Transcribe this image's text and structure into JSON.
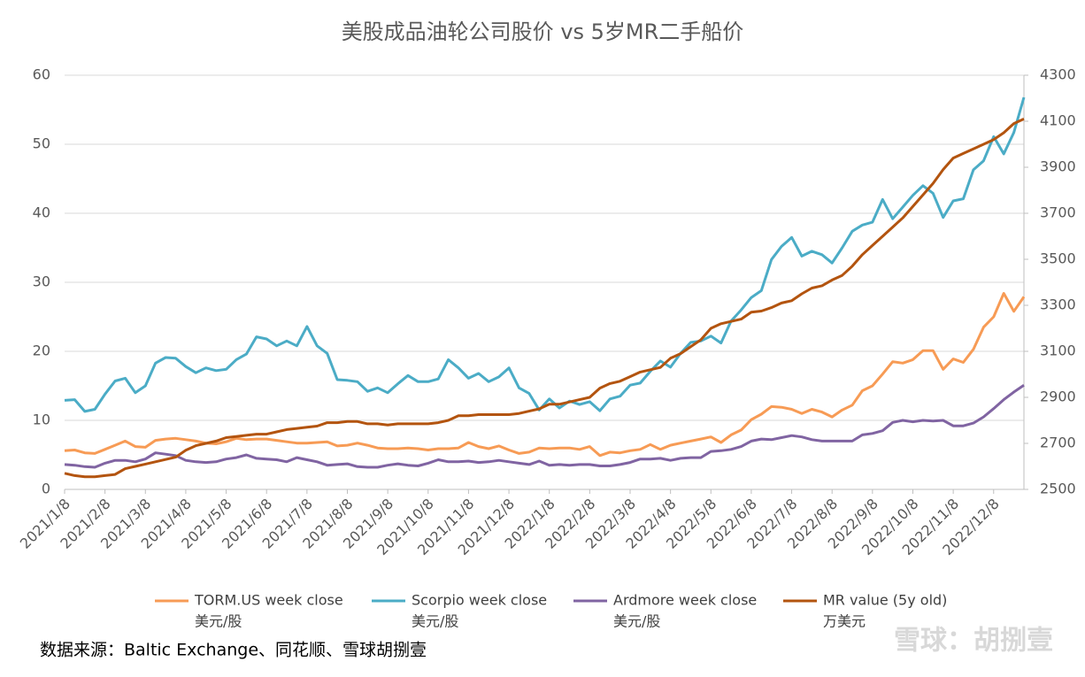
{
  "chart_data": {
    "type": "line",
    "title": "美股成品油轮公司股价 vs 5岁MR二手船价",
    "categories": [
      "2021/1/8",
      null,
      null,
      null,
      "2021/2/8",
      null,
      null,
      null,
      "2021/3/8",
      null,
      null,
      null,
      "2021/4/8",
      null,
      null,
      null,
      "2021/5/8",
      null,
      null,
      null,
      "2021/6/8",
      null,
      null,
      null,
      "2021/7/8",
      null,
      null,
      null,
      "2021/8/8",
      null,
      null,
      null,
      "2021/9/8",
      null,
      null,
      null,
      "2021/10/8",
      null,
      null,
      null,
      "2021/11/8",
      null,
      null,
      null,
      "2021/12/8",
      null,
      null,
      null,
      "2022/1/8",
      null,
      null,
      null,
      "2022/2/8",
      null,
      null,
      null,
      "2022/3/8",
      null,
      null,
      null,
      "2022/4/8",
      null,
      null,
      null,
      "2022/5/8",
      null,
      null,
      null,
      "2022/6/8",
      null,
      null,
      null,
      "2022/7/8",
      null,
      null,
      null,
      "2022/8/8",
      null,
      null,
      null,
      "2022/9/8",
      null,
      null,
      null,
      "2022/10/8",
      null,
      null,
      null,
      "2022/11/8",
      null,
      null,
      null,
      "2022/12/8",
      null,
      null,
      null
    ],
    "ylim": [
      0,
      60
    ],
    "yticks": [
      0,
      10,
      20,
      30,
      40,
      50,
      60
    ],
    "y2lim": [
      2500,
      4300
    ],
    "y2ticks": [
      2500,
      2700,
      2900,
      3100,
      3300,
      3500,
      3700,
      3900,
      4100,
      4300
    ],
    "series": [
      {
        "name": "TORM.US week close",
        "unit": "美元/股",
        "color": "#f79b55",
        "values": [
          5.6,
          5.7,
          5.3,
          5.2,
          5.8,
          6.4,
          7.0,
          6.2,
          6.1,
          7.1,
          7.3,
          7.4,
          7.2,
          7.0,
          6.7,
          6.6,
          6.9,
          7.4,
          7.2,
          7.3,
          7.3,
          7.1,
          6.9,
          6.7,
          6.7,
          6.8,
          6.9,
          6.3,
          6.4,
          6.7,
          6.4,
          6.0,
          5.9,
          5.9,
          6.0,
          5.9,
          5.7,
          5.9,
          5.9,
          6.0,
          6.8,
          6.2,
          5.9,
          6.3,
          5.7,
          5.2,
          5.4,
          6.0,
          5.9,
          6.0,
          6.0,
          5.8,
          6.2,
          4.9,
          5.4,
          5.3,
          5.6,
          5.8,
          6.5,
          5.8,
          6.4,
          6.7,
          7.0,
          7.3,
          7.6,
          6.8,
          7.9,
          8.6,
          10.1,
          10.9,
          12.0,
          11.9,
          11.6,
          11.0,
          11.6,
          11.2,
          10.5,
          11.5,
          12.2,
          14.3,
          15.0,
          16.7,
          18.5,
          18.3,
          18.8,
          20.1,
          20.1,
          17.4,
          18.9,
          18.4,
          20.3,
          23.5,
          25.0,
          28.4,
          25.8,
          27.9
        ]
      },
      {
        "name": "Scorpio week close",
        "unit": "美元/股",
        "color": "#4bacc6",
        "values": [
          12.9,
          13.0,
          11.3,
          11.6,
          13.8,
          15.7,
          16.1,
          14.0,
          15.0,
          18.3,
          19.1,
          19.0,
          17.8,
          16.9,
          17.6,
          17.2,
          17.4,
          18.8,
          19.6,
          22.1,
          21.8,
          20.8,
          21.5,
          20.8,
          23.6,
          20.8,
          19.7,
          15.9,
          15.8,
          15.6,
          14.2,
          14.7,
          14.0,
          15.3,
          16.5,
          15.6,
          15.6,
          16.0,
          18.8,
          17.6,
          16.1,
          16.8,
          15.6,
          16.3,
          17.6,
          14.7,
          13.9,
          11.5,
          13.1,
          11.8,
          12.8,
          12.3,
          12.7,
          11.4,
          13.1,
          13.5,
          15.1,
          15.4,
          17.1,
          18.6,
          17.7,
          19.7,
          21.3,
          21.5,
          22.2,
          21.2,
          24.4,
          26.0,
          27.8,
          28.8,
          33.3,
          35.2,
          36.5,
          33.8,
          34.5,
          34.0,
          32.8,
          35.0,
          37.4,
          38.3,
          38.7,
          42.0,
          39.2,
          40.9,
          42.6,
          44.0,
          42.9,
          39.4,
          41.8,
          42.1,
          46.3,
          47.6,
          51.1,
          48.6,
          51.7,
          56.8
        ]
      },
      {
        "name": "Ardmore week close",
        "unit": "美元/股",
        "color": "#8064a2",
        "values": [
          3.6,
          3.5,
          3.3,
          3.2,
          3.8,
          4.2,
          4.2,
          4.0,
          4.4,
          5.3,
          5.1,
          4.9,
          4.2,
          4.0,
          3.9,
          4.0,
          4.4,
          4.6,
          5.0,
          4.5,
          4.4,
          4.3,
          4.0,
          4.6,
          4.3,
          4.0,
          3.5,
          3.6,
          3.7,
          3.3,
          3.2,
          3.2,
          3.5,
          3.7,
          3.5,
          3.4,
          3.8,
          4.3,
          4.0,
          4.0,
          4.1,
          3.9,
          4.0,
          4.2,
          4.0,
          3.8,
          3.6,
          4.1,
          3.5,
          3.6,
          3.5,
          3.6,
          3.6,
          3.4,
          3.4,
          3.6,
          3.9,
          4.4,
          4.4,
          4.5,
          4.2,
          4.5,
          4.6,
          4.6,
          5.5,
          5.6,
          5.8,
          6.2,
          7.0,
          7.3,
          7.2,
          7.5,
          7.8,
          7.6,
          7.2,
          7.0,
          7.0,
          7.0,
          7.0,
          7.9,
          8.1,
          8.5,
          9.7,
          10.0,
          9.8,
          10.0,
          9.9,
          10.0,
          9.2,
          9.2,
          9.6,
          10.5,
          11.7,
          13.0,
          14.1,
          15.1
        ]
      },
      {
        "name": "MR value (5y old)",
        "unit": "万美元",
        "color": "#b3540f",
        "axis": "y2",
        "values": [
          2570,
          2560,
          2555,
          2555,
          2560,
          2565,
          2590,
          2600,
          2610,
          2620,
          2630,
          2640,
          2670,
          2690,
          2700,
          2710,
          2725,
          2730,
          2735,
          2740,
          2740,
          2750,
          2760,
          2765,
          2770,
          2775,
          2790,
          2790,
          2795,
          2795,
          2785,
          2785,
          2780,
          2785,
          2785,
          2785,
          2785,
          2790,
          2800,
          2820,
          2820,
          2825,
          2825,
          2825,
          2825,
          2830,
          2840,
          2850,
          2870,
          2870,
          2880,
          2890,
          2900,
          2940,
          2960,
          2970,
          2990,
          3010,
          3020,
          3030,
          3070,
          3090,
          3120,
          3150,
          3200,
          3220,
          3230,
          3240,
          3270,
          3275,
          3290,
          3310,
          3320,
          3350,
          3375,
          3385,
          3410,
          3430,
          3470,
          3520,
          3560,
          3600,
          3640,
          3680,
          3730,
          3780,
          3830,
          3890,
          3940,
          3960,
          3980,
          4000,
          4020,
          4050,
          4090,
          4110
        ]
      }
    ],
    "source": "数据来源：Baltic Exchange、同花顺、雪球胡捌壹",
    "watermark": "雪球：胡捌壹"
  }
}
